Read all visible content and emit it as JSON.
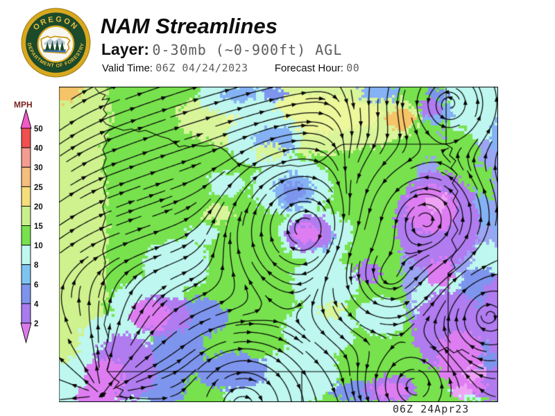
{
  "header": {
    "title": "NAM Streamlines",
    "layer_label": "Layer:",
    "layer_value": "0-30mb (~0-900ft) AGL",
    "valid_label": "Valid Time:",
    "valid_value": "06Z 04/24/2023",
    "forecast_label": "Forecast Hour:",
    "forecast_value": "00"
  },
  "logo": {
    "top_text": "OREGON",
    "bottom_text": "DEPARTMENT OF FORESTRY",
    "ring_color": "#D9A81F",
    "disc_color": "#1C4A2B",
    "text_color": "#E9BE3C"
  },
  "legend": {
    "title": "MPH",
    "title_color": "#7a1f1f",
    "labels": [
      "50",
      "40",
      "30",
      "25",
      "20",
      "15",
      "10",
      "8",
      "6",
      "4",
      "2"
    ],
    "cell_colors": [
      "#F05050",
      "#F49C90",
      "#F5BE7E",
      "#F6DD7C",
      "#C9F08C",
      "#77E24D",
      "#BFF8F0",
      "#7EC4F0",
      "#7E94EC",
      "#A87BEE"
    ],
    "arrow_top_color": "#F25AC8",
    "arrow_bottom_color": "#DA7BEC"
  },
  "map": {
    "timestamp": "06Z 24Apr23",
    "bg": "#77E24D",
    "line_color": "#060606",
    "blobs": [
      [
        -30,
        230,
        100,
        330,
        "#CFF28E"
      ],
      [
        20,
        40,
        55,
        70,
        "#CFF28E"
      ],
      [
        8,
        8,
        26,
        14,
        "#F6C468"
      ],
      [
        345,
        45,
        175,
        52,
        "#D9F59A"
      ],
      [
        352,
        40,
        115,
        28,
        "#EDF79B"
      ],
      [
        492,
        47,
        24,
        15,
        "#F6C468"
      ],
      [
        323,
        78,
        15,
        10,
        "#F6C468"
      ],
      [
        629,
        72,
        14,
        13,
        "#F6C468"
      ],
      [
        262,
        12,
        62,
        30,
        "#BDF7EF"
      ],
      [
        295,
        75,
        52,
        42,
        "#BDF7EF"
      ],
      [
        335,
        145,
        58,
        42,
        "#BDF7EF"
      ],
      [
        370,
        215,
        52,
        40,
        "#BDF7EF"
      ],
      [
        383,
        285,
        48,
        38,
        "#BDF7EF"
      ],
      [
        374,
        352,
        52,
        42,
        "#BDF7EF"
      ],
      [
        345,
        415,
        58,
        40,
        "#BDF7EF"
      ],
      [
        302,
        444,
        62,
        26,
        "#BDF7EF"
      ],
      [
        168,
        258,
        48,
        36,
        "#BDF7EF"
      ],
      [
        130,
        315,
        52,
        42,
        "#BDF7EF"
      ],
      [
        82,
        372,
        55,
        45,
        "#BDF7EF"
      ],
      [
        38,
        430,
        60,
        42,
        "#BDF7EF"
      ],
      [
        100,
        442,
        55,
        32,
        "#BDF7EF"
      ],
      [
        240,
        140,
        25,
        18,
        "#BDF7EF"
      ],
      [
        205,
        215,
        22,
        15,
        "#BDF7EF"
      ],
      [
        588,
        240,
        95,
        185,
        "#9BA5F3"
      ],
      [
        600,
        10,
        48,
        18,
        "#BDF7EF"
      ],
      [
        598,
        40,
        40,
        45,
        "#BDF7EF"
      ],
      [
        575,
        100,
        32,
        40,
        "#77E24D"
      ],
      [
        598,
        150,
        30,
        42,
        "#77E24D"
      ],
      [
        585,
        375,
        26,
        20,
        "#77E24D"
      ],
      [
        618,
        435,
        20,
        11,
        "#77E24D"
      ],
      [
        530,
        88,
        28,
        18,
        "#77E24D"
      ],
      [
        555,
        315,
        45,
        50,
        "#BDF7EF"
      ],
      [
        617,
        255,
        24,
        30,
        "#BDF7EF"
      ],
      [
        600,
        432,
        40,
        20,
        "#BDF7EF"
      ],
      [
        465,
        332,
        36,
        28,
        "#BDF7EF"
      ],
      [
        310,
        80,
        30,
        22,
        "#84B2F4"
      ],
      [
        338,
        150,
        30,
        25,
        "#84B2F4"
      ],
      [
        262,
        10,
        26,
        13,
        "#84B2F4"
      ],
      [
        462,
        6,
        30,
        14,
        "#84B2F4"
      ],
      [
        545,
        38,
        22,
        16,
        "#84B2F4"
      ],
      [
        372,
        220,
        25,
        19,
        "#84B2F4"
      ],
      [
        562,
        372,
        28,
        22,
        "#84B2F4"
      ],
      [
        600,
        180,
        24,
        30,
        "#84B2F4"
      ],
      [
        645,
        205,
        20,
        28,
        "#84B2F4"
      ],
      [
        640,
        75,
        20,
        28,
        "#84B2F4"
      ],
      [
        340,
        152,
        18,
        14,
        "#7E95EE"
      ],
      [
        545,
        10,
        16,
        9,
        "#7E95EE"
      ],
      [
        205,
        332,
        38,
        28,
        "#7E95EE"
      ],
      [
        172,
        378,
        36,
        44,
        "#7E95EE"
      ],
      [
        248,
        410,
        52,
        26,
        "#7E95EE"
      ],
      [
        608,
        302,
        33,
        42,
        "#7E95EE"
      ],
      [
        628,
        398,
        28,
        36,
        "#7E95EE"
      ],
      [
        450,
        440,
        60,
        16,
        "#7E95EE"
      ],
      [
        310,
        12,
        18,
        10,
        "#7E95EE"
      ],
      [
        150,
        430,
        35,
        30,
        "#7E95EE"
      ],
      [
        545,
        195,
        60,
        72,
        "#B07CF0"
      ],
      [
        562,
        352,
        52,
        58,
        "#B07CF0"
      ],
      [
        535,
        30,
        16,
        12,
        "#B07CF0"
      ],
      [
        628,
        430,
        42,
        22,
        "#B07CF0"
      ],
      [
        360,
        212,
        34,
        25,
        "#B07CF0"
      ],
      [
        148,
        330,
        40,
        30,
        "#B07CF0"
      ],
      [
        95,
        405,
        45,
        48,
        "#B07CF0"
      ],
      [
        478,
        437,
        38,
        20,
        "#B07CF0"
      ],
      [
        445,
        268,
        18,
        14,
        "#B07CF0"
      ],
      [
        640,
        330,
        30,
        60,
        "#B07CF0"
      ],
      [
        537,
        178,
        36,
        33,
        "#DE7DF2"
      ],
      [
        577,
        390,
        33,
        38,
        "#DE7DF2"
      ],
      [
        360,
        212,
        20,
        13,
        "#DE7DF2"
      ],
      [
        588,
        432,
        28,
        14,
        "#DE7DF2"
      ],
      [
        130,
        330,
        28,
        20,
        "#DE7DF2"
      ],
      [
        65,
        420,
        28,
        30,
        "#DE7DF2"
      ],
      [
        55,
        450,
        30,
        20,
        "#DE7DF2"
      ],
      [
        480,
        438,
        26,
        12,
        "#DE7DF2"
      ],
      [
        550,
        268,
        18,
        22,
        "#DE7DF2"
      ],
      [
        545,
        168,
        16,
        12,
        "#EFA3F5"
      ],
      [
        600,
        413,
        16,
        9,
        "#EFA3F5"
      ],
      [
        583,
        440,
        14,
        8,
        "#EFA3F5"
      ],
      [
        230,
        182,
        22,
        12,
        "#D9F59A"
      ],
      [
        395,
        322,
        18,
        10,
        "#D9F59A"
      ],
      [
        305,
        95,
        22,
        11,
        "#D9F59A"
      ]
    ],
    "flow": {
      "base_u": 1.0,
      "base_v": -0.42,
      "shear": 0.35,
      "left_lift": 0.28,
      "vortices": [
        [
          530,
          193,
          60,
          2.6
        ],
        [
          475,
          273,
          48,
          2.4
        ],
        [
          513,
          431,
          42,
          2.2
        ],
        [
          563,
          25,
          55,
          1.6
        ],
        [
          620,
          330,
          55,
          -1.4
        ],
        [
          355,
          205,
          55,
          -0.7
        ],
        [
          265,
          460,
          55,
          -0.9
        ]
      ],
      "sources": [
        [
          62,
          445,
          55,
          2.2
        ]
      ]
    },
    "geo": {
      "coast": [
        [
          52,
          2
        ],
        [
          58,
          9
        ],
        [
          67,
          12
        ],
        [
          62,
          19
        ],
        [
          73,
          17
        ],
        [
          68,
          25
        ],
        [
          64,
          33
        ],
        [
          69,
          40
        ],
        [
          62,
          47
        ],
        [
          68,
          54
        ],
        [
          81,
          59
        ],
        [
          71,
          64
        ],
        [
          65,
          71
        ],
        [
          69,
          81
        ],
        [
          63,
          91
        ],
        [
          68,
          103
        ],
        [
          63,
          117
        ],
        [
          69,
          131
        ],
        [
          64,
          145
        ],
        [
          68,
          159
        ],
        [
          63,
          173
        ],
        [
          67,
          189
        ],
        [
          62,
          205
        ],
        [
          67,
          221
        ],
        [
          63,
          237
        ],
        [
          67,
          253
        ],
        [
          63,
          271
        ],
        [
          67,
          289
        ],
        [
          64,
          307
        ],
        [
          69,
          325
        ],
        [
          65,
          343
        ],
        [
          71,
          361
        ],
        [
          67,
          379
        ],
        [
          73,
          395
        ],
        [
          69,
          409
        ],
        [
          78,
          420
        ],
        [
          87,
          426
        ],
        [
          81,
          433
        ],
        [
          93,
          438
        ],
        [
          87,
          445
        ],
        [
          98,
          450
        ],
        [
          95,
          455
        ]
      ],
      "rivers": [
        [
          [
            81,
            59
          ],
          [
            93,
            63
          ],
          [
            105,
            61
          ],
          [
            115,
            65
          ],
          [
            125,
            63
          ],
          [
            137,
            68
          ],
          [
            147,
            72
          ],
          [
            158,
            75
          ],
          [
            167,
            81
          ],
          [
            173,
            87
          ],
          [
            181,
            85
          ],
          [
            189,
            87
          ],
          [
            198,
            85
          ],
          [
            210,
            86
          ],
          [
            220,
            84
          ],
          [
            232,
            87
          ],
          [
            242,
            94
          ],
          [
            250,
            104
          ],
          [
            258,
            111
          ],
          [
            270,
            115
          ],
          [
            283,
            117
          ],
          [
            295,
            115
          ],
          [
            308,
            113
          ],
          [
            320,
            115
          ],
          [
            333,
            113
          ],
          [
            345,
            115
          ],
          [
            358,
            113
          ],
          [
            370,
            111
          ],
          [
            381,
            105
          ],
          [
            390,
            97
          ],
          [
            399,
            89
          ],
          [
            407,
            84
          ],
          [
            412,
            83
          ]
        ],
        [
          [
            558,
            83
          ],
          [
            567,
            89
          ],
          [
            563,
            99
          ],
          [
            572,
            107
          ],
          [
            565,
            117
          ],
          [
            574,
            127
          ],
          [
            567,
            139
          ],
          [
            575,
            151
          ],
          [
            568,
            165
          ],
          [
            576,
            179
          ],
          [
            568,
            193
          ],
          [
            575,
            207
          ],
          [
            566,
            221
          ],
          [
            573,
            235
          ],
          [
            565,
            249
          ],
          [
            571,
            261
          ],
          [
            561,
            269
          ]
        ],
        [
          [
            535,
            375
          ],
          [
            547,
            382
          ],
          [
            559,
            376
          ],
          [
            569,
            384
          ],
          [
            581,
            379
          ],
          [
            591,
            385
          ]
        ]
      ],
      "borders": [
        [
          [
            412,
            83
          ],
          [
            558,
            83
          ]
        ],
        [
          [
            558,
            2
          ],
          [
            558,
            83
          ]
        ],
        [
          [
            561,
            269
          ],
          [
            561,
            411
          ]
        ],
        [
          [
            70,
            411
          ],
          [
            633,
            411
          ]
        ],
        [
          [
            350,
            411
          ],
          [
            350,
            455
          ]
        ]
      ]
    }
  }
}
